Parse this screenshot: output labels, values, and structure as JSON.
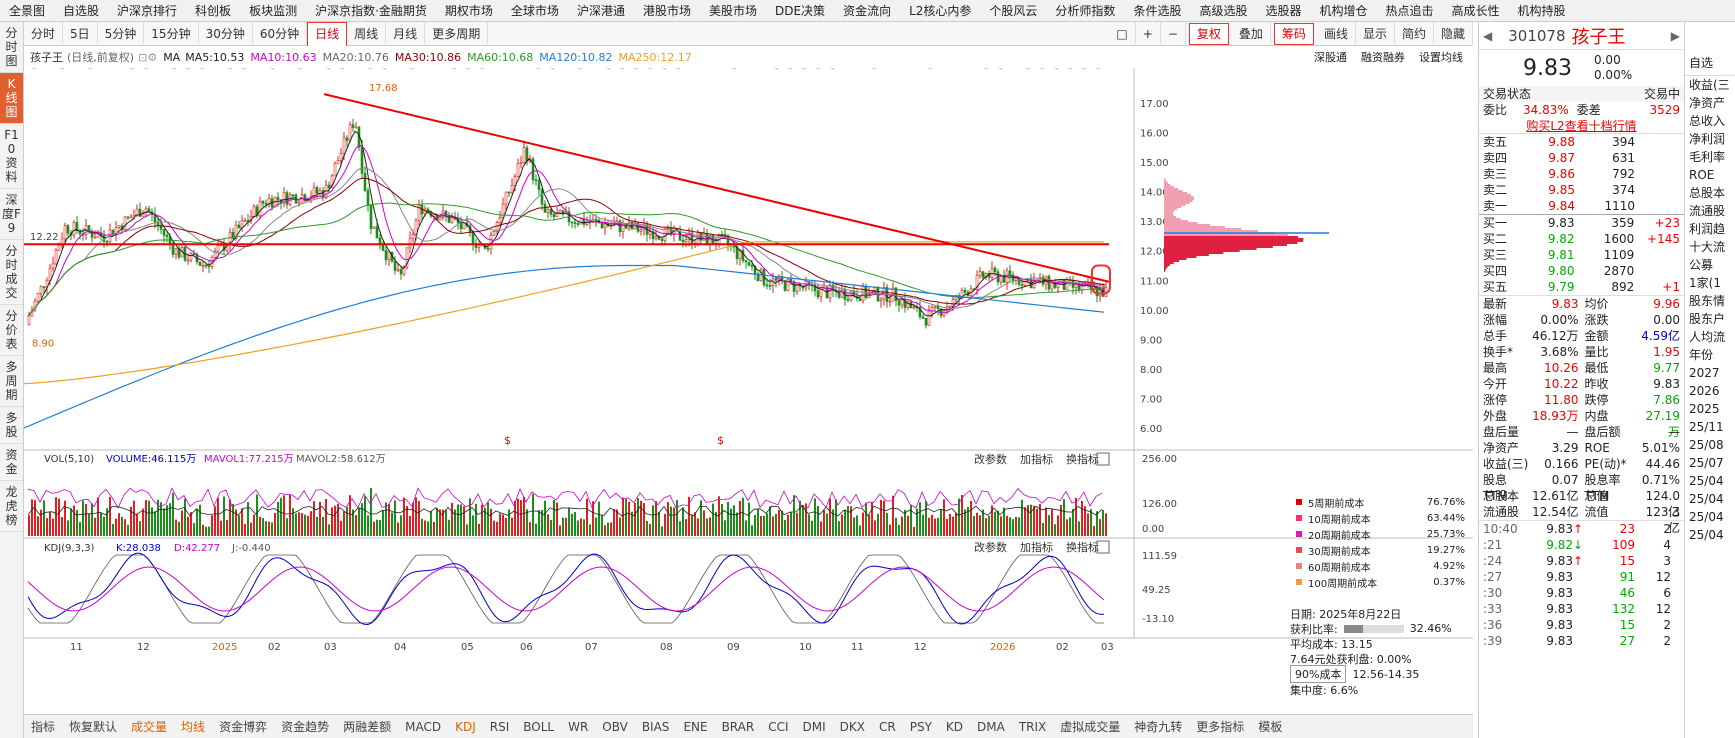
{
  "topmenu": [
    "全景图",
    "自选股",
    "沪深京排行",
    "科创板",
    "板块监测",
    "沪深京指数·金融期货",
    "期权市场",
    "全球市场",
    "沪深港通",
    "港股市场",
    "美股市场",
    "DDE决策",
    "资金流向",
    "L2核心内参",
    "个股风云",
    "分析师指数",
    "条件选股",
    "高级选股",
    "选股器",
    "机构增仓",
    "热点追击",
    "高成长性",
    "机构持股"
  ],
  "toolbar": [
    "分时",
    "5日",
    "5分钟",
    "15分钟",
    "30分钟",
    "60分钟",
    "日线",
    "周线",
    "月线",
    "更多周期"
  ],
  "toolbar_right": [
    "复权",
    "叠加",
    "筹码",
    "画线",
    "显示",
    "简约",
    "隐藏"
  ],
  "sidebar": [
    "分时图",
    "K线图",
    "F10资料",
    "深度F9",
    "分时成交",
    "分价表",
    "多周期",
    "多股",
    "资金",
    "龙虎榜"
  ],
  "stockbar": {
    "name": "孩子王",
    "type": "(日线,前复权)",
    "ma": "MA",
    "ma5": "MA5:10.53",
    "ma10": "MA10:10.63",
    "ma20": "MA20:10.76",
    "ma30": "MA30:10.86",
    "ma60": "MA60:10.68",
    "ma120": "MA120:10.82",
    "ma250": "MA250:12.17",
    "links": [
      "深股通",
      "融资融券",
      "设置均线"
    ]
  },
  "chart_data": {
    "type": "line",
    "title": "孩子王 日线",
    "yticks": [
      "17.00",
      "16.00",
      "15.00",
      "14.00",
      "13.00",
      "12.00",
      "11.00",
      "10.00",
      "9.00",
      "8.00",
      "7.00",
      "6.00"
    ],
    "xticks": [
      "11",
      "12",
      "2025",
      "02",
      "03",
      "04",
      "05",
      "06",
      "07",
      "08",
      "09",
      "10",
      "11",
      "12",
      "2026",
      "02",
      "03"
    ],
    "high_label": "17.68",
    "low_label": "8.90",
    "level_label": "12.22",
    "vol_yticks": [
      "256.00",
      "126.00",
      "0.00"
    ],
    "kdj_yticks": [
      "111.59",
      "49.25",
      "-13.10"
    ]
  },
  "vol": {
    "title": "VOL(5,10)",
    "volume": "VOLUME:46.115万",
    "mavol1": "MAVOL1:77.215万",
    "mavol2": "MAVOL2:58.612万",
    "btns": [
      "改参数",
      "加指标",
      "换指标"
    ]
  },
  "kdj": {
    "title": "KDJ(9,3,3)",
    "k": "K:28.038",
    "d": "D:42.277",
    "j": "J:-0.440",
    "btns": [
      "改参数",
      "加指标",
      "换指标"
    ]
  },
  "legend": [
    {
      "label": "5周期前成本",
      "val": "76.76%",
      "color": "#e00000"
    },
    {
      "label": "10周期前成本",
      "val": "63.44%",
      "color": "#ff3060"
    },
    {
      "label": "20周期前成本",
      "val": "25.73%",
      "color": "#d020b0"
    },
    {
      "label": "30周期前成本",
      "val": "19.27%",
      "color": "#e05050"
    },
    {
      "label": "60周期前成本",
      "val": "4.92%",
      "color": "#f08080"
    },
    {
      "label": "100周期前成本",
      "val": "0.37%",
      "color": "#f0a040"
    }
  ],
  "costinfo": {
    "date": "日期: 2025年8月22日",
    "profit_label": "获利比率:",
    "profit": "32.46%",
    "avg": "平均成本: 13.15",
    "pct": "7.64元处获利盘: 0.00%",
    "range_sel": "90%成本",
    "range": "12.56-14.35",
    "conc": "集中度: 6.6%"
  },
  "bottombar": [
    "指标",
    "恢复默认",
    "成交量",
    "均线",
    "资金博弈",
    "资金趋势",
    "两融差额",
    "MACD",
    "KDJ",
    "RSI",
    "BOLL",
    "WR",
    "OBV",
    "BIAS",
    "ENE",
    "BRAR",
    "CCI",
    "DMI",
    "DKX",
    "CR",
    "PSY",
    "KD",
    "DMA",
    "TRIX",
    "虚拟成交量",
    "神奇九转",
    "更多指标",
    "模板"
  ],
  "quote": {
    "code": "301078",
    "name": "孩子王",
    "price": "9.83",
    "chg": "0.00",
    "pct": "0.00%",
    "status_label": "交易状态",
    "status": "交易中",
    "wb_label": "委比",
    "wb": "34.83%",
    "wc_label": "委差",
    "wc": "3529",
    "l2": "购买L2查看十档行情"
  },
  "sells": [
    [
      "卖五",
      "9.88",
      "394"
    ],
    [
      "卖四",
      "9.87",
      "631"
    ],
    [
      "卖三",
      "9.86",
      "792"
    ],
    [
      "卖二",
      "9.85",
      "374"
    ],
    [
      "卖一",
      "9.84",
      "1110"
    ]
  ],
  "buys": [
    [
      "买一",
      "9.83",
      "359",
      "+23"
    ],
    [
      "买二",
      "9.82",
      "1600",
      "+145"
    ],
    [
      "买三",
      "9.81",
      "1109",
      ""
    ],
    [
      "买四",
      "9.80",
      "2870",
      ""
    ],
    [
      "买五",
      "9.79",
      "892",
      "+1"
    ]
  ],
  "stats": [
    [
      "最新",
      "9.83",
      "均价",
      "9.96"
    ],
    [
      "涨幅",
      "0.00%",
      "涨跌",
      "0.00"
    ],
    [
      "总手",
      "46.12万",
      "金额",
      "4.59亿"
    ],
    [
      "换手*",
      "3.68%",
      "量比",
      "1.95"
    ],
    [
      "最高",
      "10.26",
      "最低",
      "9.77"
    ],
    [
      "今开",
      "10.22",
      "昨收",
      "9.83"
    ],
    [
      "涨停",
      "11.80",
      "跌停",
      "7.86"
    ],
    [
      "外盘",
      "18.93万",
      "内盘",
      "27.19万"
    ],
    [
      "盘后量",
      "—",
      "盘后额",
      "—"
    ],
    [
      "净资产",
      "3.29",
      "ROE",
      "5.01%"
    ],
    [
      "收益(三)",
      "0.166",
      "PE(动)*",
      "44.46"
    ],
    [
      "股息TTM",
      "0.07",
      "股息率TTM",
      "0.71%"
    ],
    [
      "总股本",
      "12.61亿",
      "总值",
      "124.0亿"
    ],
    [
      "流通股",
      "12.54亿",
      "流值",
      "123.3亿"
    ]
  ],
  "ticks": [
    [
      "10:40",
      "9.83",
      "↑",
      "23",
      "2"
    ],
    [
      ":21",
      "9.82",
      "↓",
      "109",
      "4"
    ],
    [
      ":24",
      "9.83",
      "↑",
      "15",
      "3"
    ],
    [
      ":27",
      "9.83",
      "",
      "91",
      "12"
    ],
    [
      ":30",
      "9.83",
      "",
      "46",
      "6"
    ],
    [
      ":33",
      "9.83",
      "",
      "132",
      "12"
    ],
    [
      ":36",
      "9.83",
      "",
      "15",
      "2"
    ],
    [
      ":39",
      "9.83",
      "",
      "27",
      "2"
    ]
  ],
  "farright": [
    "收益(三",
    "净资产",
    "总收入",
    "净利润",
    "毛利率",
    "ROE",
    "总股本",
    "流通股",
    "利润趋",
    "十大流",
    "公募",
    "1家(1",
    "股东情",
    "股东户",
    "人均流",
    "年份",
    "2027",
    "2026",
    "2025",
    "25/11",
    "25/08",
    "25/07",
    "25/04",
    "25/04",
    "25/04",
    "25/04"
  ],
  "farright_top": [
    "自选"
  ]
}
